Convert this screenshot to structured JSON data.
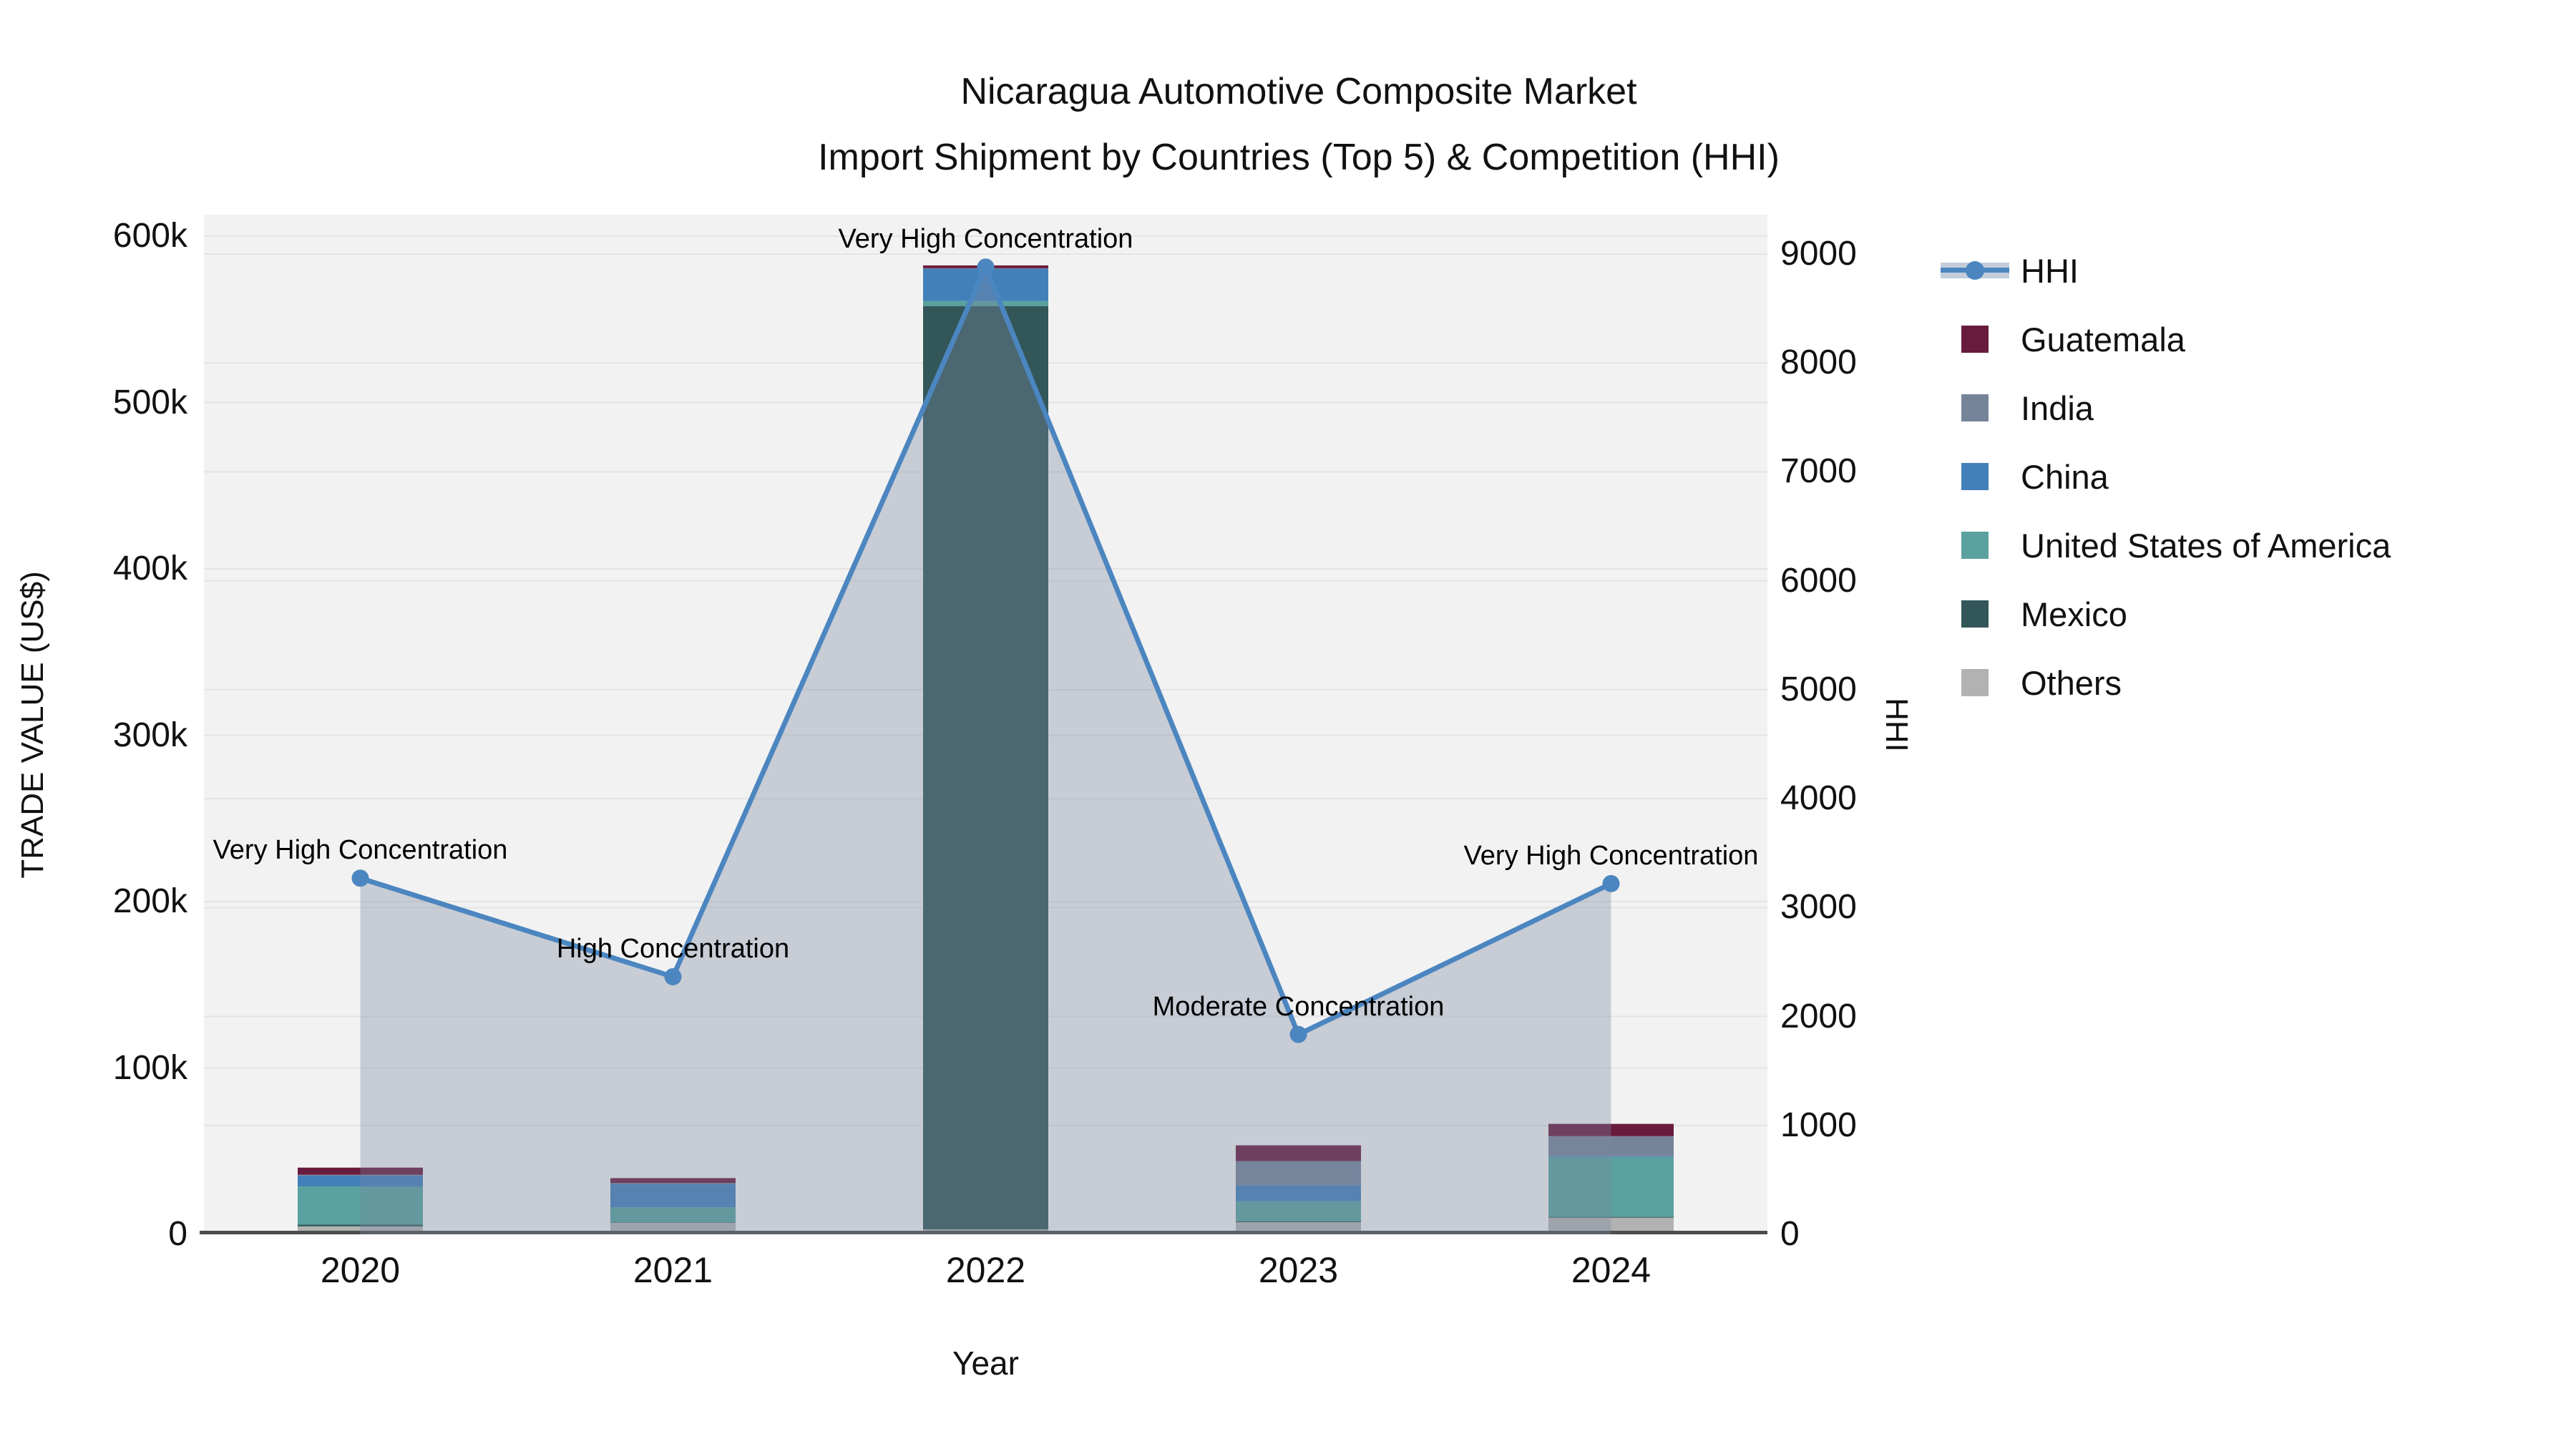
{
  "title": {
    "line1": "Nicaragua Automotive Composite Market",
    "line2": "Import Shipment by Countries (Top 5) & Competition (HHI)"
  },
  "chart_data": {
    "type": "combo: stacked-bar + line-with-area",
    "categories": [
      "2020",
      "2021",
      "2022",
      "2023",
      "2024"
    ],
    "x_axis": {
      "title": "Year"
    },
    "left_axis": {
      "title": "TRADE VALUE (US$)",
      "min": 0,
      "grid": true,
      "ticks": [
        {
          "label": "0",
          "value": 0
        },
        {
          "label": "100k",
          "value": 100000
        },
        {
          "label": "200k",
          "value": 200000
        },
        {
          "label": "300k",
          "value": 300000
        },
        {
          "label": "400k",
          "value": 400000
        },
        {
          "label": "500k",
          "value": 500000
        },
        {
          "label": "600k",
          "value": 600000
        }
      ]
    },
    "right_axis": {
      "title": "HHI",
      "min": 0,
      "grid": true,
      "ticks": [
        {
          "label": "0",
          "value": 0
        },
        {
          "label": "1000",
          "value": 1000
        },
        {
          "label": "2000",
          "value": 2000
        },
        {
          "label": "3000",
          "value": 3000
        },
        {
          "label": "4000",
          "value": 4000
        },
        {
          "label": "5000",
          "value": 5000
        },
        {
          "label": "6000",
          "value": 6000
        },
        {
          "label": "7000",
          "value": 7000
        },
        {
          "label": "8000",
          "value": 8000
        },
        {
          "label": "9000",
          "value": 9000
        }
      ]
    },
    "bar_series": [
      {
        "name": "Guatemala",
        "color": "#691b3d",
        "values": [
          4300,
          3000,
          1700,
          9500,
          7400
        ]
      },
      {
        "name": "India",
        "color": "#76849a",
        "values": [
          500,
          400,
          300,
          14600,
          12000
        ]
      },
      {
        "name": "China",
        "color": "#4280ba",
        "values": [
          6500,
          14200,
          19400,
          9500,
          500
        ]
      },
      {
        "name": "United States of America",
        "color": "#5aa19f",
        "values": [
          23000,
          9000,
          3000,
          12000,
          36000
        ]
      },
      {
        "name": "Mexico",
        "color": "#335659",
        "values": [
          1000,
          300,
          555000,
          600,
          500
        ]
      },
      {
        "name": "Others",
        "color": "#b2b2b2",
        "values": [
          4800,
          6900,
          3000,
          7300,
          10000
        ]
      }
    ],
    "stack_order_bottom_to_top": [
      "Others",
      "Mexico",
      "United States of America",
      "China",
      "India",
      "Guatemala"
    ],
    "line_series": {
      "name": "HHI",
      "color": "#4c86c0",
      "area_fill": "rgba(120,135,160,0.35)",
      "values": [
        3270,
        2365,
        8880,
        1835,
        3220
      ],
      "point_annotations": [
        "Very High Concentration",
        "High Concentration",
        "Very High Concentration",
        "Moderate Concentration",
        "Very High Concentration"
      ]
    },
    "style": {
      "plot_bg": "#f2f2f2",
      "grid_color": "#e4e4e4",
      "axis_line_color": "#4c4c4c",
      "legend_band_color": "#c4cedb"
    }
  }
}
